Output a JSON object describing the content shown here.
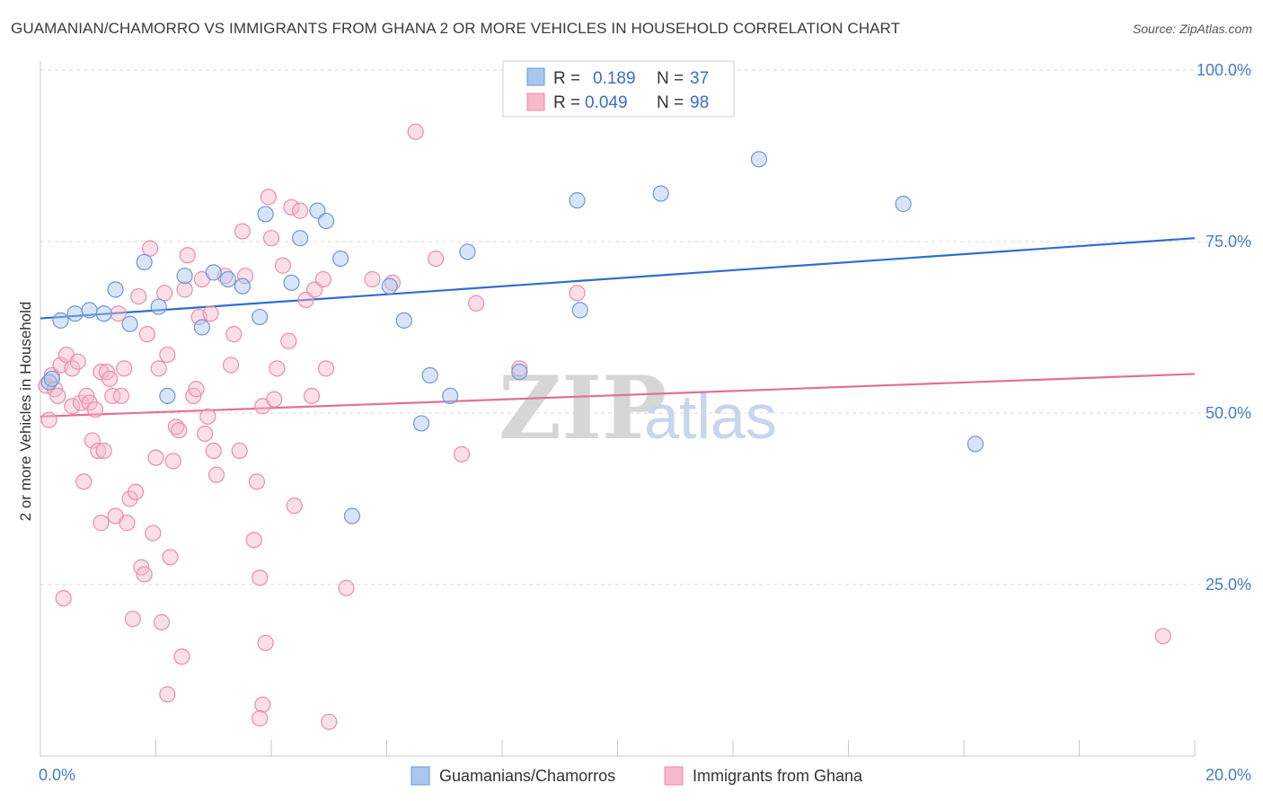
{
  "header": {
    "title": "GUAMANIAN/CHAMORRO VS IMMIGRANTS FROM GHANA 2 OR MORE VEHICLES IN HOUSEHOLD CORRELATION CHART",
    "source": "Source: ZipAtlas.com"
  },
  "legend": {
    "r_label": "R =",
    "n_label": "N =",
    "rows": [
      {
        "r": "0.189",
        "n": "37"
      },
      {
        "r": "0.049",
        "n": "98"
      }
    ]
  },
  "watermark": {
    "zip": "ZIP",
    "atlas": "atlas"
  },
  "colors": {
    "series1_fill": "#a9c6ef",
    "series1_stroke": "#6b98d8",
    "series1_line": "#2f6fce",
    "series2_fill": "#f6b9cb",
    "series2_stroke": "#ea8eab",
    "series2_line": "#e0709a",
    "grid": "#d8d8d8",
    "tick_text": "#4a7cc4"
  },
  "chart_data": {
    "type": "scatter",
    "title": "GUAMANIAN/CHAMORRO VS IMMIGRANTS FROM GHANA 2 OR MORE VEHICLES IN HOUSEHOLD CORRELATION CHART",
    "xlabel": "",
    "ylabel": "2 or more Vehicles in Household",
    "xlim": [
      0,
      20
    ],
    "ylim": [
      0,
      100
    ],
    "x_tick_labels": [
      "0.0%",
      "20.0%"
    ],
    "y_ticks": [
      25,
      50,
      75,
      100
    ],
    "y_tick_labels": [
      "25.0%",
      "50.0%",
      "75.0%",
      "100.0%"
    ],
    "grid": true,
    "legend_position": "bottom",
    "series": [
      {
        "name": "Guamanians/Chamorros",
        "r": 0.189,
        "n": 37,
        "trend": {
          "x": [
            0,
            20
          ],
          "y": [
            63.8,
            75.5
          ]
        },
        "points": [
          [
            0.15,
            54.5
          ],
          [
            0.35,
            63.5
          ],
          [
            0.6,
            64.5
          ],
          [
            0.85,
            65.0
          ],
          [
            1.1,
            64.5
          ],
          [
            1.3,
            68.0
          ],
          [
            1.55,
            63.0
          ],
          [
            1.8,
            72.0
          ],
          [
            2.05,
            65.5
          ],
          [
            2.2,
            52.5
          ],
          [
            2.5,
            70.0
          ],
          [
            2.8,
            62.5
          ],
          [
            3.0,
            70.5
          ],
          [
            3.25,
            69.5
          ],
          [
            3.5,
            68.5
          ],
          [
            3.8,
            64.0
          ],
          [
            3.9,
            79.0
          ],
          [
            4.35,
            69.0
          ],
          [
            4.5,
            75.5
          ],
          [
            4.8,
            79.5
          ],
          [
            4.95,
            78.0
          ],
          [
            5.2,
            72.5
          ],
          [
            5.4,
            35.0
          ],
          [
            6.05,
            68.5
          ],
          [
            6.3,
            63.5
          ],
          [
            6.6,
            48.5
          ],
          [
            6.75,
            55.5
          ],
          [
            7.1,
            52.5
          ],
          [
            7.4,
            73.5
          ],
          [
            8.3,
            56.0
          ],
          [
            9.3,
            81.0
          ],
          [
            9.35,
            65.0
          ],
          [
            10.75,
            82.0
          ],
          [
            12.45,
            87.0
          ],
          [
            14.95,
            80.5
          ],
          [
            16.2,
            45.5
          ],
          [
            0.2,
            55.0
          ]
        ]
      },
      {
        "name": "Immigrants from Ghana",
        "r": 0.049,
        "n": 98,
        "trend": {
          "x": [
            0,
            20
          ],
          "y": [
            49.5,
            55.7
          ]
        },
        "points": [
          [
            0.1,
            54.0
          ],
          [
            0.15,
            49.0
          ],
          [
            0.2,
            55.5
          ],
          [
            0.25,
            53.5
          ],
          [
            0.3,
            52.5
          ],
          [
            0.35,
            57.0
          ],
          [
            0.4,
            23.0
          ],
          [
            0.45,
            58.5
          ],
          [
            0.55,
            51.0
          ],
          [
            0.55,
            56.5
          ],
          [
            0.65,
            57.5
          ],
          [
            0.7,
            51.5
          ],
          [
            0.75,
            40.0
          ],
          [
            0.8,
            52.5
          ],
          [
            0.85,
            51.5
          ],
          [
            0.9,
            46.0
          ],
          [
            0.95,
            50.5
          ],
          [
            1.0,
            44.5
          ],
          [
            1.05,
            56.0
          ],
          [
            1.05,
            34.0
          ],
          [
            1.1,
            44.5
          ],
          [
            1.15,
            56.0
          ],
          [
            1.2,
            55.0
          ],
          [
            1.25,
            52.5
          ],
          [
            1.3,
            35.0
          ],
          [
            1.35,
            64.5
          ],
          [
            1.4,
            52.5
          ],
          [
            1.45,
            56.5
          ],
          [
            1.5,
            34.0
          ],
          [
            1.55,
            37.5
          ],
          [
            1.6,
            20.0
          ],
          [
            1.65,
            38.5
          ],
          [
            1.7,
            67.0
          ],
          [
            1.75,
            27.5
          ],
          [
            1.8,
            26.5
          ],
          [
            1.85,
            61.5
          ],
          [
            1.9,
            74.0
          ],
          [
            1.95,
            32.5
          ],
          [
            2.0,
            43.5
          ],
          [
            2.05,
            56.5
          ],
          [
            2.1,
            19.5
          ],
          [
            2.15,
            67.5
          ],
          [
            2.2,
            58.5
          ],
          [
            2.2,
            9.0
          ],
          [
            2.25,
            29.0
          ],
          [
            2.3,
            43.0
          ],
          [
            2.35,
            48.0
          ],
          [
            2.4,
            47.5
          ],
          [
            2.45,
            14.5
          ],
          [
            2.5,
            68.0
          ],
          [
            2.55,
            73.0
          ],
          [
            2.65,
            52.5
          ],
          [
            2.7,
            53.5
          ],
          [
            2.75,
            64.0
          ],
          [
            2.8,
            69.5
          ],
          [
            2.85,
            47.0
          ],
          [
            2.9,
            49.5
          ],
          [
            2.95,
            64.5
          ],
          [
            3.0,
            44.5
          ],
          [
            3.05,
            41.0
          ],
          [
            3.2,
            70.0
          ],
          [
            3.3,
            57.0
          ],
          [
            3.35,
            61.5
          ],
          [
            3.45,
            44.5
          ],
          [
            3.5,
            76.5
          ],
          [
            3.55,
            70.0
          ],
          [
            3.7,
            31.5
          ],
          [
            3.75,
            40.0
          ],
          [
            3.8,
            26.0
          ],
          [
            3.85,
            51.0
          ],
          [
            3.9,
            16.5
          ],
          [
            3.95,
            81.5
          ],
          [
            4.0,
            75.5
          ],
          [
            4.05,
            52.0
          ],
          [
            4.1,
            56.5
          ],
          [
            4.2,
            71.5
          ],
          [
            4.3,
            60.5
          ],
          [
            4.35,
            80.0
          ],
          [
            4.4,
            36.5
          ],
          [
            4.5,
            79.5
          ],
          [
            4.6,
            66.5
          ],
          [
            4.7,
            52.5
          ],
          [
            4.75,
            68.0
          ],
          [
            4.9,
            69.5
          ],
          [
            4.95,
            56.5
          ],
          [
            5.0,
            5.0
          ],
          [
            5.3,
            24.5
          ],
          [
            5.75,
            69.5
          ],
          [
            6.1,
            69.0
          ],
          [
            6.5,
            91.0
          ],
          [
            6.85,
            72.5
          ],
          [
            7.3,
            44.0
          ],
          [
            7.55,
            66.0
          ],
          [
            8.3,
            56.5
          ],
          [
            9.3,
            67.5
          ],
          [
            3.85,
            7.5
          ],
          [
            3.8,
            5.5
          ],
          [
            19.45,
            17.5
          ]
        ]
      }
    ]
  },
  "bottom_legend": {
    "items": [
      "Guamanians/Chamorros",
      "Immigrants from Ghana"
    ]
  }
}
